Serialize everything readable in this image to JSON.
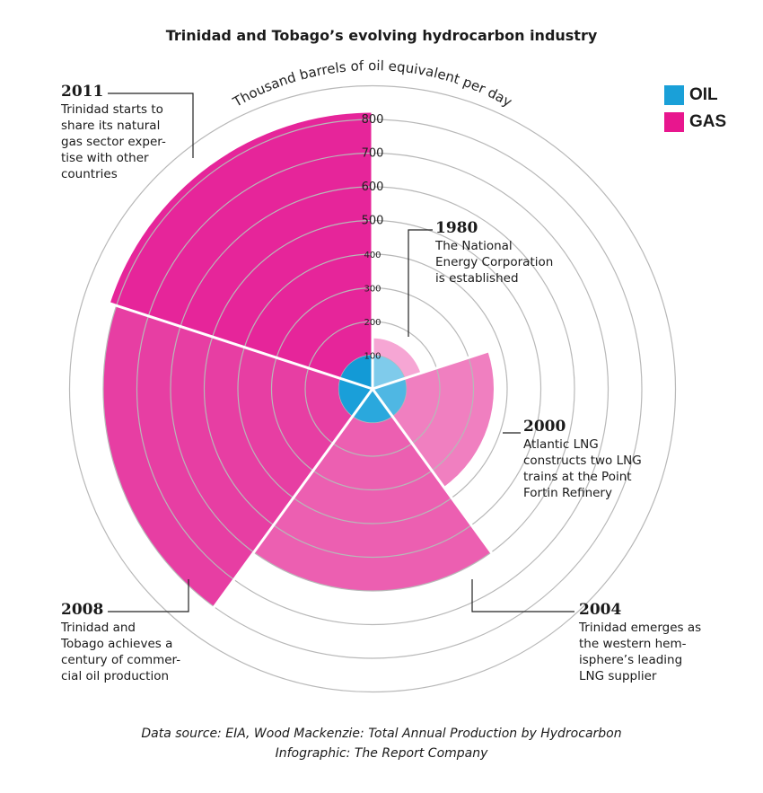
{
  "title": "Trinidad and Tobago’s evolving hydrocarbon industry",
  "legend": [
    {
      "label": "OIL",
      "color": "#1aa0d8"
    },
    {
      "label": "GAS",
      "color": "#e8168e"
    }
  ],
  "chart_data": {
    "type": "polar-area",
    "title": "Trinidad and Tobago’s evolving hydrocarbon industry",
    "axis_label": "Thousand barrels of oil equivalent per day",
    "ticks": [
      100,
      200,
      300,
      400,
      500,
      600,
      700,
      800
    ],
    "rmax": 900,
    "categories": [
      "1980",
      "2000",
      "2004",
      "2008",
      "2011"
    ],
    "series": [
      {
        "name": "OIL",
        "values": [
          100,
          100,
          100,
          100,
          100
        ]
      },
      {
        "name": "GAS",
        "values": [
          150,
          360,
          600,
          800,
          820
        ]
      }
    ]
  },
  "annotations": [
    {
      "year": "1980",
      "lines": [
        "The National",
        "Energy Corporation",
        "is established"
      ]
    },
    {
      "year": "2000",
      "lines": [
        "Atlantic LNG",
        "constructs two LNG",
        "trains at the Point",
        "Fortin Refinery"
      ]
    },
    {
      "year": "2004",
      "lines": [
        "Trinidad emerges as",
        "the western hem-",
        "isphere’s leading",
        "LNG supplier"
      ]
    },
    {
      "year": "2008",
      "lines": [
        "Trinidad and",
        "Tobago achieves a",
        "century of commer-",
        "cial oil production"
      ]
    },
    {
      "year": "2011",
      "lines": [
        "Trinidad starts to",
        "share its natural",
        "gas sector exper-",
        "tise with other",
        "countries"
      ]
    }
  ],
  "source": {
    "line1": "Data source: EIA, Wood Mackenzie: Total Annual Production by Hydrocarbon",
    "line2": "Infographic: The Report Company"
  }
}
